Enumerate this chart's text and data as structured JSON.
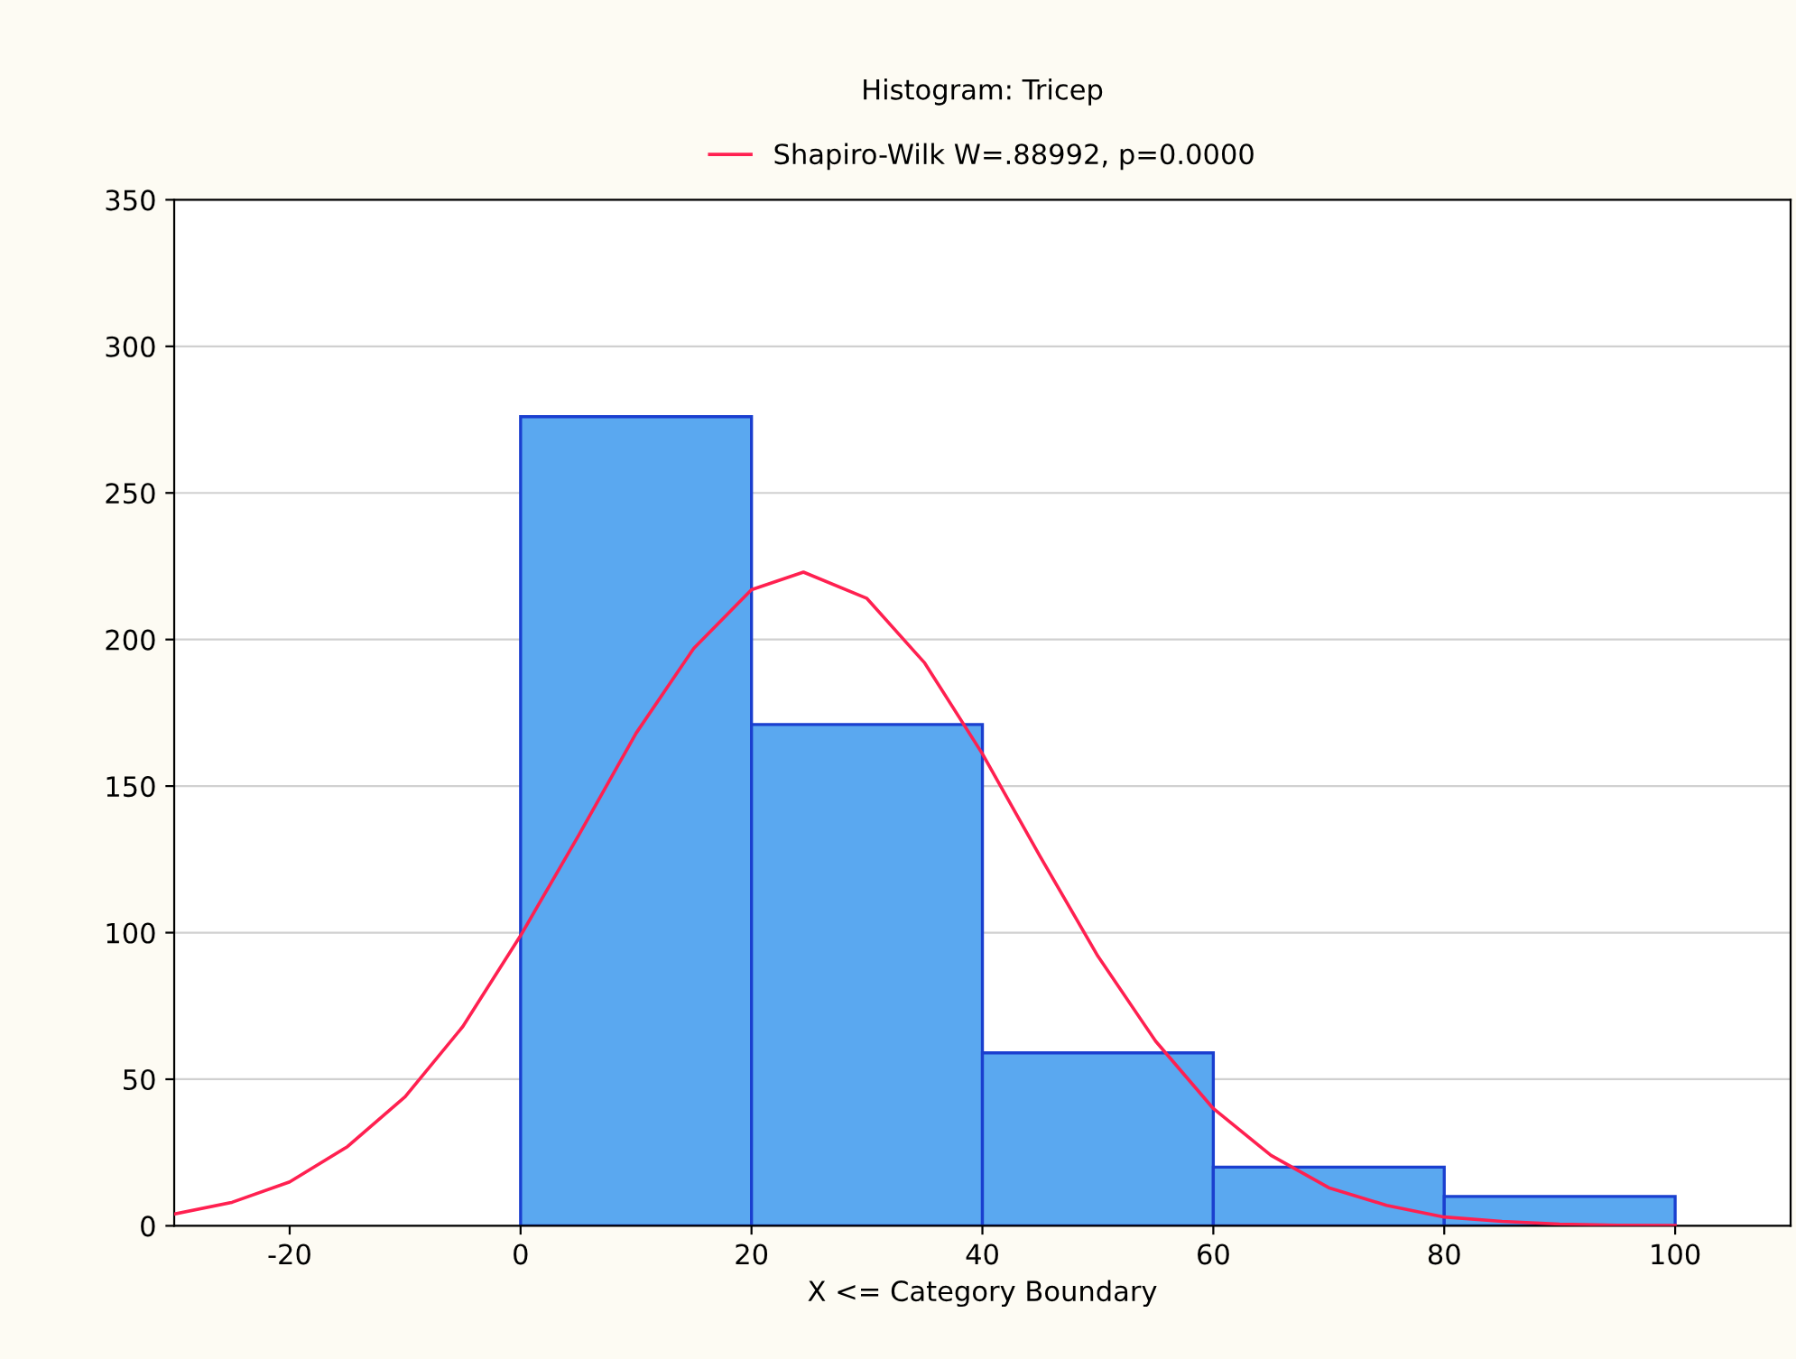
{
  "chart_data": {
    "type": "histogram",
    "title": "Histogram: Tricep",
    "xlabel": "X <= Category Boundary",
    "bins": [
      0,
      20,
      40,
      60,
      80,
      100
    ],
    "values": [
      276,
      171,
      59,
      20,
      10
    ],
    "color": "#5aa8f0",
    "series": [
      {
        "type": "line",
        "name": "Shapiro-Wilk W=.88992, p=0.0000",
        "color": "#ff2050",
        "x": [
          -30,
          -25,
          -20,
          -15,
          -10,
          -5,
          0,
          5,
          10,
          15,
          20,
          24.5,
          30,
          35,
          40,
          45,
          50,
          55,
          60,
          65,
          70,
          75,
          80,
          85,
          90,
          95,
          100
        ],
        "values": [
          4,
          8,
          15,
          27,
          44,
          68,
          99,
          133,
          168,
          197,
          217,
          223,
          214,
          192,
          161,
          126,
          92,
          63,
          40,
          24,
          13,
          7,
          3,
          1.5,
          0.6,
          0.2,
          0.1
        ]
      }
    ],
    "xlim": [
      -30,
      110
    ],
    "xticks": [
      -20,
      0,
      20,
      40,
      60,
      80,
      100
    ],
    "ylim": [
      0,
      350
    ],
    "yticks": [
      0,
      50,
      100,
      150,
      200,
      250,
      300,
      350
    ],
    "grid": "y",
    "legend": "top"
  }
}
